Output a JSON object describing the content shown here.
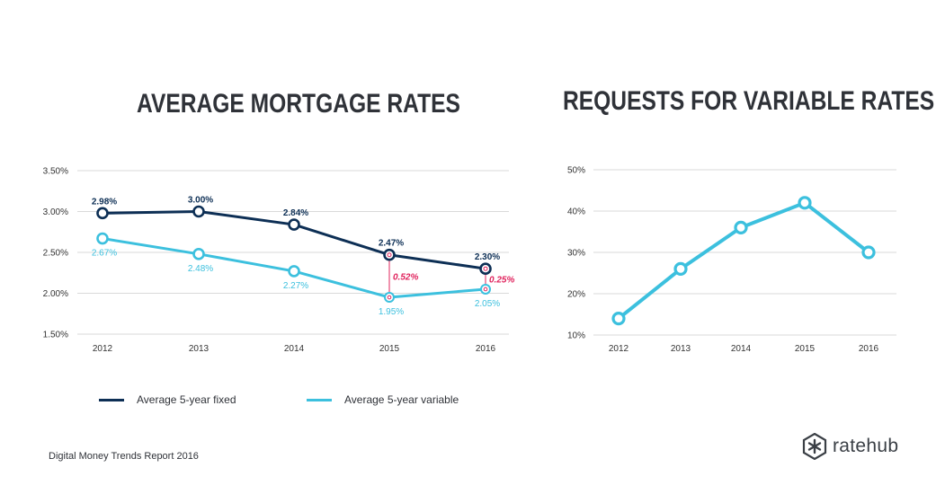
{
  "colors": {
    "fixed": "#0d2f55",
    "variable": "#3cc0de",
    "difference": "#e0245e",
    "grid": "#d9d9d9",
    "text": "#2f3238"
  },
  "titles": {
    "left": "AVERAGE MORTGAGE RATES",
    "right": "REQUESTS FOR VARIABLE RATES"
  },
  "legend": {
    "fixed": "Average 5-year fixed",
    "variable": "Average 5-year variable"
  },
  "footer": "Digital Money Trends Report 2016",
  "brand": {
    "name": "ratehub",
    "icon": "ratehub-logo-icon"
  },
  "chart_data": [
    {
      "type": "line",
      "title": "AVERAGE MORTGAGE RATES",
      "categories": [
        "2012",
        "2013",
        "2014",
        "2015",
        "2016"
      ],
      "yticks": [
        "3.50%",
        "3.00%",
        "2.50%",
        "2.00%",
        "1.50%"
      ],
      "ylim": [
        1.5,
        3.5
      ],
      "grid": true,
      "legend_position": "bottom",
      "series": [
        {
          "name": "Average 5-year fixed",
          "values": [
            2.98,
            3.0,
            2.84,
            2.47,
            2.3
          ],
          "labels": [
            "2.98%",
            "3.00%",
            "2.84%",
            "2.47%",
            "2.30%"
          ]
        },
        {
          "name": "Average 5-year variable",
          "values": [
            2.67,
            2.48,
            2.27,
            1.95,
            2.05
          ],
          "labels": [
            "2.67%",
            "2.48%",
            "2.27%",
            "1.95%",
            "2.05%"
          ]
        }
      ],
      "annotations": [
        {
          "category": "2015",
          "label": "0.52%"
        },
        {
          "category": "2016",
          "label": "0.25%"
        }
      ]
    },
    {
      "type": "line",
      "title": "REQUESTS FOR VARIABLE RATES",
      "categories": [
        "2012",
        "2013",
        "2014",
        "2015",
        "2016"
      ],
      "yticks": [
        "50%",
        "40%",
        "30%",
        "20%",
        "10%"
      ],
      "ylim": [
        10,
        50
      ],
      "grid": true,
      "series": [
        {
          "values": [
            14,
            26,
            36,
            42,
            30
          ]
        }
      ]
    }
  ]
}
